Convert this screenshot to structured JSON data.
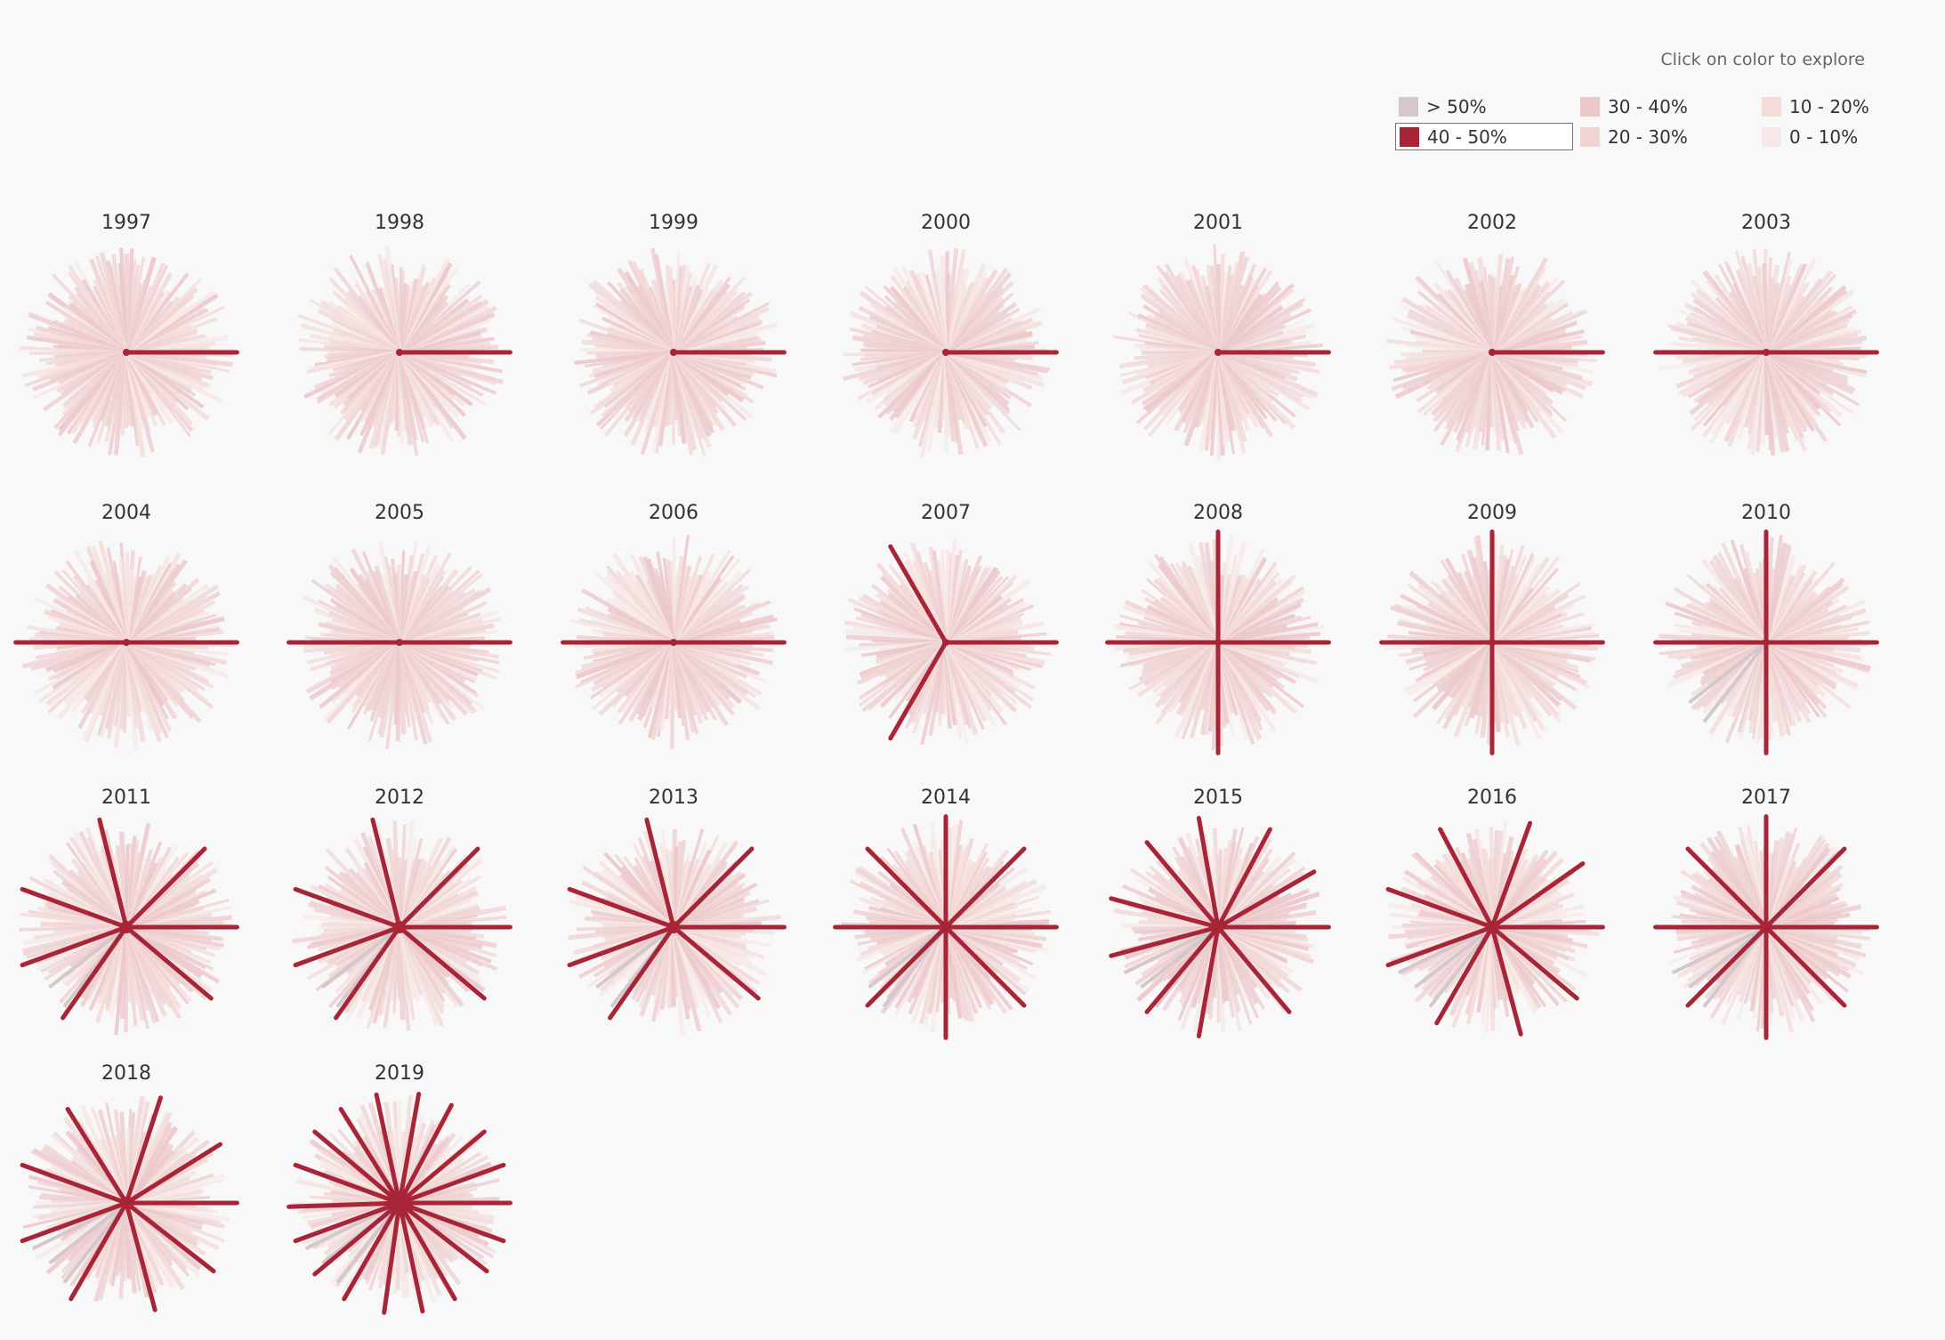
{
  "hint": "Click on color to explore",
  "legend": {
    "items": [
      {
        "label": "> 50%",
        "color": "#d5c8cc",
        "selected": false
      },
      {
        "label": "40 - 50%",
        "color": "#a82538",
        "selected": true
      },
      {
        "label": "30 - 40%",
        "color": "#ecc8cb",
        "selected": false
      },
      {
        "label": "20 - 30%",
        "color": "#f0d3d3",
        "selected": false
      },
      {
        "label": "10 - 20%",
        "color": "#f4ddd9",
        "selected": false
      },
      {
        "label": "0 - 10%",
        "color": "#f6e8e6",
        "selected": false
      }
    ]
  },
  "chart_data": {
    "type": "radial-bar",
    "title": "",
    "ray_count": 150,
    "highlight_category": "40 - 50%",
    "small_multiples": [
      {
        "year": "1997",
        "highlight_angles_deg": [
          0
        ]
      },
      {
        "year": "1998",
        "highlight_angles_deg": [
          0
        ]
      },
      {
        "year": "1999",
        "highlight_angles_deg": [
          0
        ]
      },
      {
        "year": "2000",
        "highlight_angles_deg": [
          0
        ]
      },
      {
        "year": "2001",
        "highlight_angles_deg": [
          0
        ]
      },
      {
        "year": "2002",
        "highlight_angles_deg": [
          0
        ]
      },
      {
        "year": "2003",
        "highlight_angles_deg": [
          0,
          180
        ]
      },
      {
        "year": "2004",
        "highlight_angles_deg": [
          0,
          180
        ]
      },
      {
        "year": "2005",
        "highlight_angles_deg": [
          0,
          180
        ]
      },
      {
        "year": "2006",
        "highlight_angles_deg": [
          0,
          180
        ]
      },
      {
        "year": "2007",
        "highlight_angles_deg": [
          0,
          120,
          240
        ]
      },
      {
        "year": "2008",
        "highlight_angles_deg": [
          0,
          90,
          180,
          270
        ]
      },
      {
        "year": "2009",
        "highlight_angles_deg": [
          0,
          90,
          180,
          270
        ]
      },
      {
        "year": "2010",
        "highlight_angles_deg": [
          0,
          90,
          180,
          270
        ]
      },
      {
        "year": "2011",
        "highlight_angles_deg": [
          0,
          45,
          104,
          160,
          200,
          235,
          320
        ]
      },
      {
        "year": "2012",
        "highlight_angles_deg": [
          0,
          45,
          104,
          160,
          200,
          235,
          320
        ]
      },
      {
        "year": "2013",
        "highlight_angles_deg": [
          0,
          45,
          104,
          160,
          200,
          235,
          320
        ]
      },
      {
        "year": "2014",
        "highlight_angles_deg": [
          0,
          45,
          90,
          135,
          180,
          225,
          270,
          315
        ]
      },
      {
        "year": "2015",
        "highlight_angles_deg": [
          0,
          30,
          62,
          100,
          130,
          165,
          195,
          230,
          260,
          310
        ]
      },
      {
        "year": "2016",
        "highlight_angles_deg": [
          0,
          35,
          70,
          118,
          160,
          200,
          240,
          285,
          320
        ]
      },
      {
        "year": "2017",
        "highlight_angles_deg": [
          0,
          45,
          90,
          135,
          180,
          225,
          270,
          315
        ]
      },
      {
        "year": "2018",
        "highlight_angles_deg": [
          0,
          32,
          72,
          122,
          160,
          200,
          240,
          285,
          322
        ]
      },
      {
        "year": "2019",
        "highlight_angles_deg": [
          0,
          20,
          40,
          62,
          80,
          102,
          122,
          140,
          160,
          182,
          200,
          220,
          240,
          262,
          282,
          300,
          322,
          340
        ]
      }
    ]
  }
}
